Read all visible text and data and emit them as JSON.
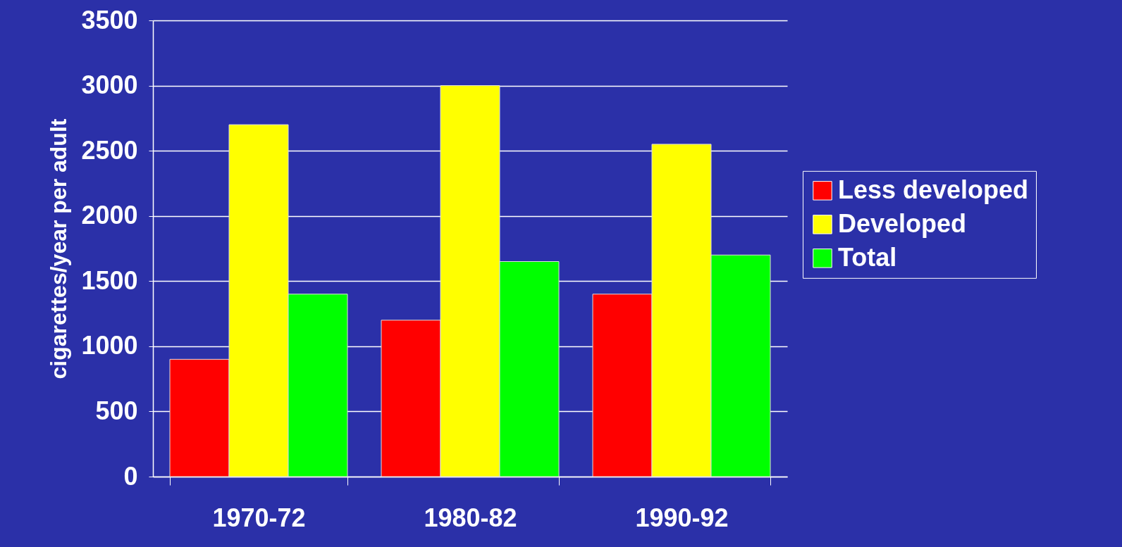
{
  "chart_data": {
    "type": "bar",
    "ylabel": "cigarettes/year per adult",
    "categories": [
      "1970-72",
      "1980-82",
      "1990-92"
    ],
    "series": [
      {
        "name": "Less developed",
        "color": "#ff0000",
        "values": [
          900,
          1200,
          1400
        ]
      },
      {
        "name": "Developed",
        "color": "#ffff00",
        "values": [
          2700,
          3000,
          2550
        ]
      },
      {
        "name": "Total",
        "color": "#00ff00",
        "values": [
          1400,
          1650,
          1700
        ]
      }
    ],
    "ylim": [
      0,
      3500
    ],
    "yticks": [
      0,
      500,
      1000,
      1500,
      2000,
      2500,
      3000,
      3500
    ],
    "grid": "y",
    "legend": "right"
  }
}
